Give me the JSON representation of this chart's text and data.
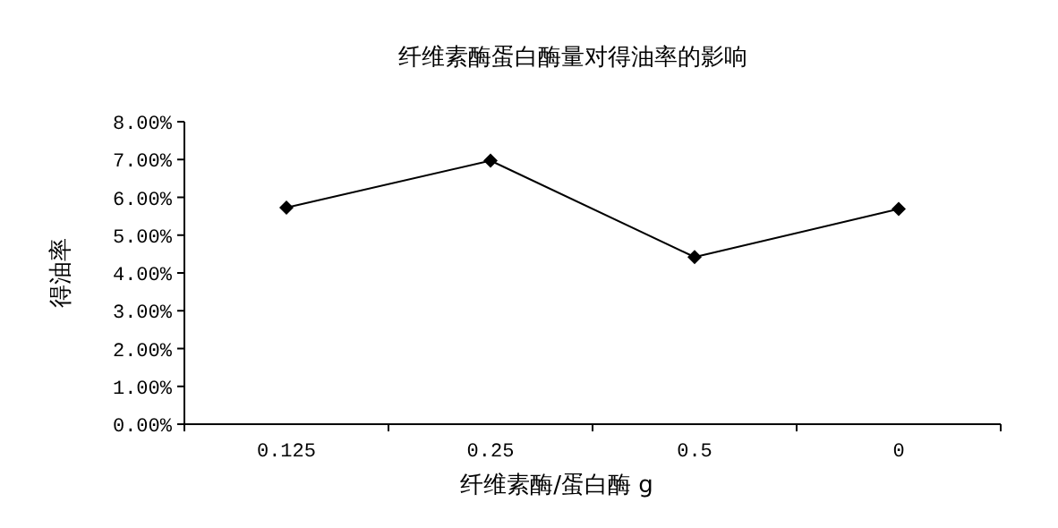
{
  "chart_data": {
    "type": "line",
    "title": "纤维素酶蛋白酶量对得油率的影响",
    "xlabel": "纤维素酶/蛋白酶 g",
    "ylabel": "得油率",
    "categories": [
      "0.125",
      "0.25",
      "0.5",
      "0"
    ],
    "series": [
      {
        "color": "#000000",
        "values": [
          5.73,
          6.97,
          4.42,
          5.69
        ]
      }
    ],
    "ylim": [
      0,
      8
    ],
    "yticks": [
      {
        "value": 0,
        "label": "0.00%"
      },
      {
        "value": 1,
        "label": "1.00%"
      },
      {
        "value": 2,
        "label": "2.00%"
      },
      {
        "value": 3,
        "label": "3.00%"
      },
      {
        "value": 4,
        "label": "4.00%"
      },
      {
        "value": 5,
        "label": "5.00%"
      },
      {
        "value": 6,
        "label": "6.00%"
      },
      {
        "value": 7,
        "label": "7.00%"
      },
      {
        "value": 8,
        "label": "8.00%"
      }
    ],
    "marker": "diamond",
    "line_style": "solid"
  }
}
